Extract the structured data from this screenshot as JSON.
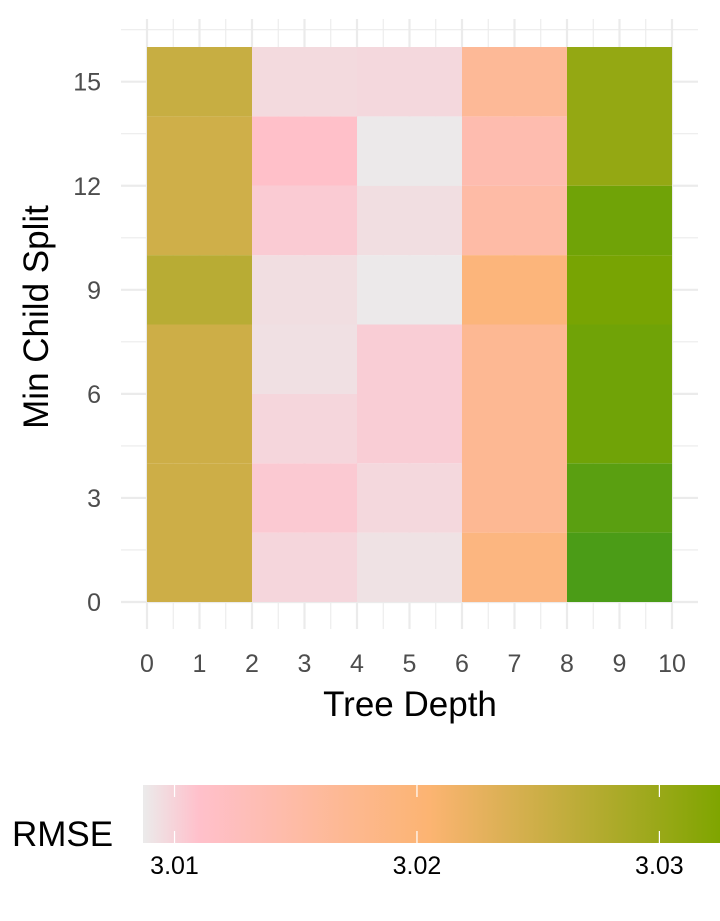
{
  "chart_data": {
    "type": "heatmap",
    "xlabel": "Tree Depth",
    "ylabel": "Min Child Split",
    "x_ticks": [
      "0",
      "1",
      "2",
      "3",
      "4",
      "5",
      "6",
      "7",
      "8",
      "9",
      "10"
    ],
    "y_ticks": [
      "0",
      "3",
      "6",
      "9",
      "12",
      "15"
    ],
    "xlim": [
      0,
      10
    ],
    "ylim": [
      0,
      16
    ],
    "grid": true,
    "legend_position": "bottom",
    "legend": {
      "title": "RMSE",
      "ticks": [
        "3.01",
        "3.02",
        "3.03"
      ],
      "range": [
        3.0087,
        3.0325
      ],
      "gradient": [
        {
          "value": 3.0087,
          "color": "#ebebeb"
        },
        {
          "value": 3.011,
          "color": "#ffc0cb"
        },
        {
          "value": 3.0205,
          "color": "#fcb472"
        },
        {
          "value": 3.0325,
          "color": "#7fa500"
        }
      ]
    },
    "cells": [
      {
        "x": [
          0,
          2
        ],
        "y": [
          0,
          4
        ],
        "value": 3.025
      },
      {
        "x": [
          0,
          2
        ],
        "y": [
          4,
          8
        ],
        "value": 3.025
      },
      {
        "x": [
          0,
          2
        ],
        "y": [
          8,
          10
        ],
        "value": 3.027
      },
      {
        "x": [
          0,
          2
        ],
        "y": [
          10,
          14
        ],
        "value": 3.0248
      },
      {
        "x": [
          0,
          2
        ],
        "y": [
          14,
          16
        ],
        "value": 3.0256
      },
      {
        "x": [
          2,
          4
        ],
        "y": [
          0,
          2
        ],
        "value": 3.0098
      },
      {
        "x": [
          2,
          4
        ],
        "y": [
          2,
          4
        ],
        "value": 3.0105
      },
      {
        "x": [
          2,
          4
        ],
        "y": [
          4,
          6
        ],
        "value": 3.0098
      },
      {
        "x": [
          2,
          4
        ],
        "y": [
          6,
          8
        ],
        "value": 3.0093
      },
      {
        "x": [
          2,
          4
        ],
        "y": [
          8,
          10
        ],
        "value": 3.0094
      },
      {
        "x": [
          2,
          4
        ],
        "y": [
          10,
          12
        ],
        "value": 3.0104
      },
      {
        "x": [
          2,
          4
        ],
        "y": [
          12,
          14
        ],
        "value": 3.0112
      },
      {
        "x": [
          2,
          4
        ],
        "y": [
          14,
          16
        ],
        "value": 3.0096
      },
      {
        "x": [
          4,
          6
        ],
        "y": [
          0,
          2
        ],
        "value": 3.0092
      },
      {
        "x": [
          4,
          6
        ],
        "y": [
          2,
          4
        ],
        "value": 3.0097
      },
      {
        "x": [
          4,
          6
        ],
        "y": [
          4,
          8
        ],
        "value": 3.0103
      },
      {
        "x": [
          4,
          6
        ],
        "y": [
          8,
          10
        ],
        "value": 3.0088
      },
      {
        "x": [
          4,
          6
        ],
        "y": [
          10,
          12
        ],
        "value": 3.0094
      },
      {
        "x": [
          4,
          6
        ],
        "y": [
          12,
          14
        ],
        "value": 3.0088
      },
      {
        "x": [
          4,
          6
        ],
        "y": [
          14,
          16
        ],
        "value": 3.0097
      },
      {
        "x": [
          6,
          8
        ],
        "y": [
          0,
          2
        ],
        "value": 3.019
      },
      {
        "x": [
          6,
          8
        ],
        "y": [
          2,
          8
        ],
        "value": 3.017
      },
      {
        "x": [
          6,
          8
        ],
        "y": [
          8,
          10
        ],
        "value": 3.0195
      },
      {
        "x": [
          6,
          8
        ],
        "y": [
          10,
          12
        ],
        "value": 3.015
      },
      {
        "x": [
          6,
          8
        ],
        "y": [
          12,
          14
        ],
        "value": 3.014
      },
      {
        "x": [
          6,
          8
        ],
        "y": [
          14,
          16
        ],
        "value": 3.0165
      },
      {
        "x": [
          8,
          10
        ],
        "y": [
          0,
          2
        ],
        "value": 3.036
      },
      {
        "x": [
          8,
          10
        ],
        "y": [
          2,
          4
        ],
        "value": 3.035
      },
      {
        "x": [
          8,
          10
        ],
        "y": [
          4,
          8
        ],
        "value": 3.0335
      },
      {
        "x": [
          8,
          10
        ],
        "y": [
          8,
          10
        ],
        "value": 3.033
      },
      {
        "x": [
          8,
          10
        ],
        "y": [
          10,
          12
        ],
        "value": 3.0335
      },
      {
        "x": [
          8,
          10
        ],
        "y": [
          12,
          16
        ],
        "value": 3.0305
      }
    ]
  }
}
